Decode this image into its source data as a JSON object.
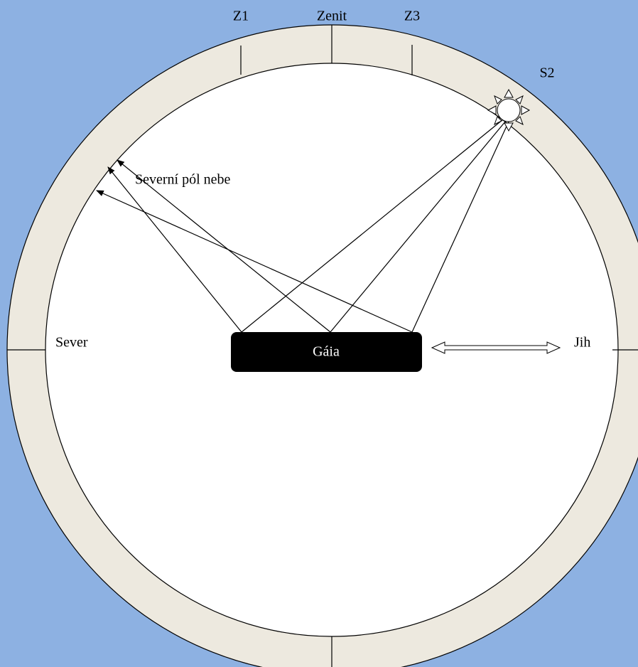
{
  "labels": {
    "z1": "Z1",
    "zenit": "Zenit",
    "z3": "Z3",
    "s2": "S2",
    "pole": "Severní pól nebe",
    "sever": "Sever",
    "jih": "Jih",
    "gaia": "Gáia"
  }
}
